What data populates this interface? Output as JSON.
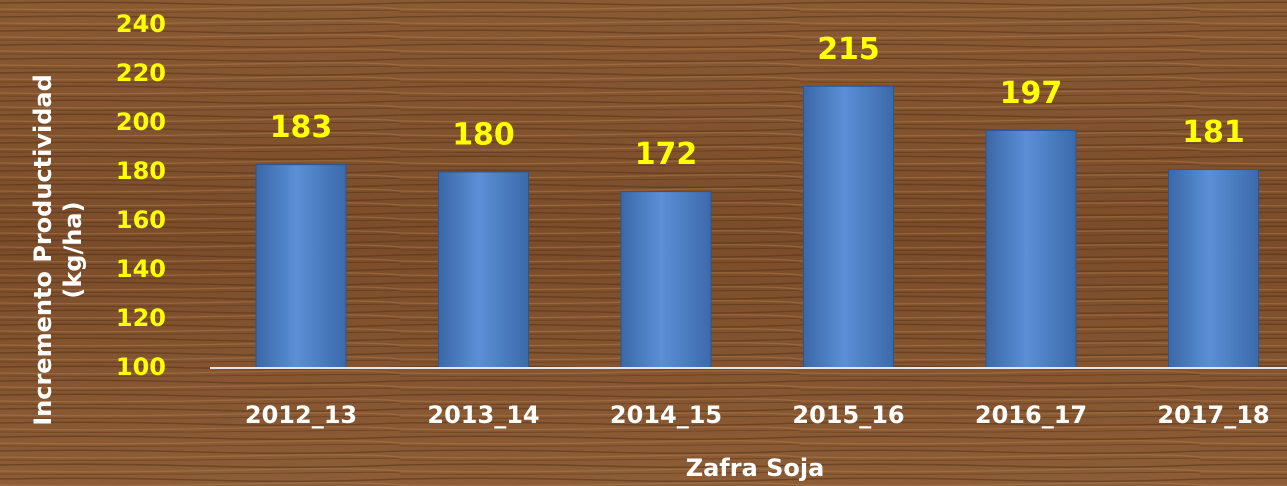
{
  "chart_data": {
    "type": "bar",
    "ylabel": [
      "Incremento Productividad",
      "(kg/ha)"
    ],
    "xlabel": "Zafra Soja",
    "categories": [
      "2012_13",
      "2013_14",
      "2014_15",
      "2015_16",
      "2016_17",
      "2017_18"
    ],
    "values": [
      183,
      180,
      172,
      215,
      197,
      181
    ],
    "color": "#4f81bd",
    "ylim": [
      100,
      240
    ],
    "yticks": [
      100,
      120,
      140,
      160,
      180,
      200,
      220,
      240
    ],
    "grid": false
  }
}
